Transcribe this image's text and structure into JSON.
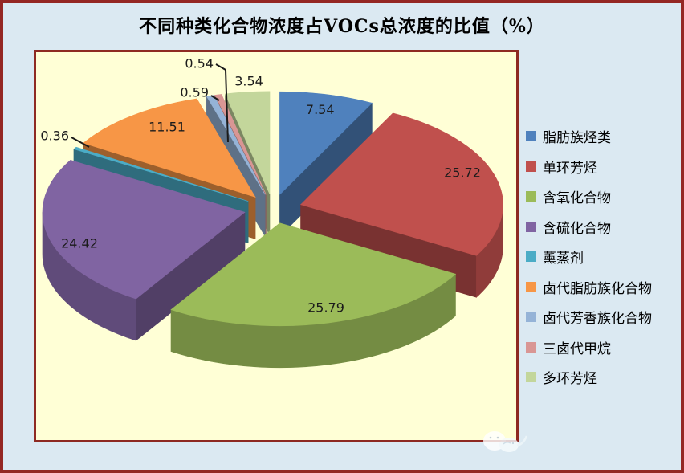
{
  "page": {
    "background": "#dbe9f2",
    "frame_border_color": "#942724"
  },
  "chart_data": {
    "type": "pie",
    "style": "3d-exploded",
    "title": "不同种类化合物浓度占VOCs总浓度的比值（%）",
    "unit": "%",
    "labels": [
      "脂肪族烃类",
      "单环芳烃",
      "含氧化合物",
      "含硫化合物",
      "薰蒸剂",
      "卤代脂肪族化合物",
      "卤代芳香族化合物",
      "三卤代甲烷",
      "多环芳烃"
    ],
    "values": [
      7.54,
      25.72,
      25.79,
      24.42,
      0.36,
      11.51,
      0.59,
      0.54,
      3.54
    ],
    "data_labels": [
      "7.54",
      "25.72",
      "25.79",
      "24.42",
      "0.36",
      "11.51",
      "0.59",
      "0.54",
      "3.54"
    ],
    "colors": [
      "#4F81BD",
      "#C0504D",
      "#9BBB59",
      "#8064A2",
      "#4BACC6",
      "#F79646",
      "#95B3D7",
      "#D99694",
      "#C3D69B"
    ],
    "start_angle_deg": 0,
    "direction": "clockwise",
    "legend_position": "right",
    "plot_background": "#FFFFD6",
    "plot_border_color": "#8E2A22"
  }
}
